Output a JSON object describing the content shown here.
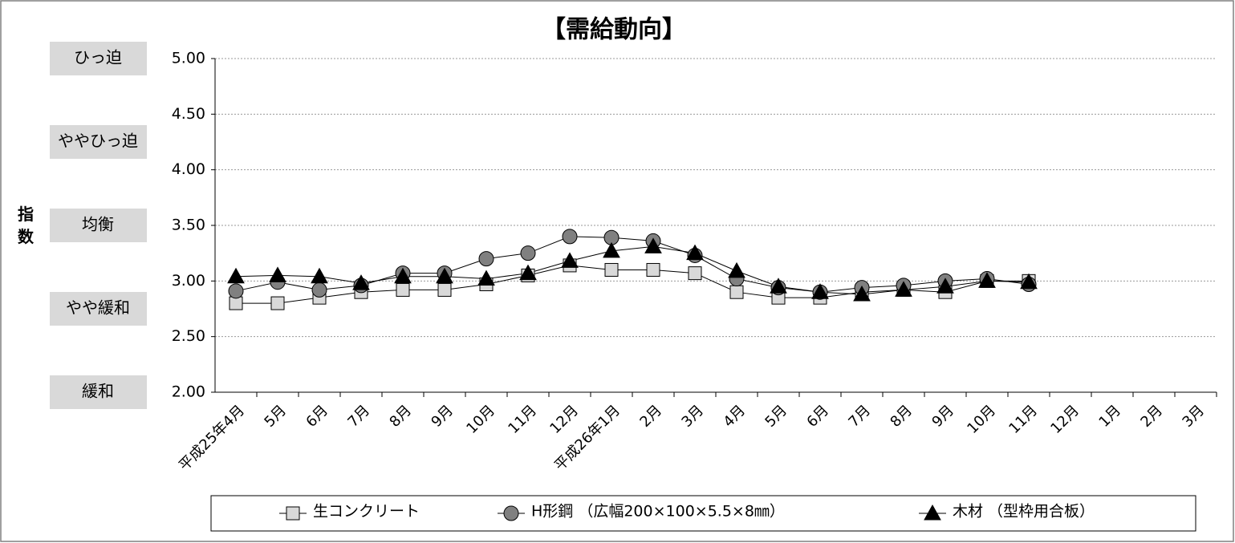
{
  "chart_data": {
    "type": "line",
    "title": "【需給動向】",
    "ylabel": "指数",
    "categories": [
      "平成25年4月",
      "5月",
      "6月",
      "7月",
      "8月",
      "9月",
      "10月",
      "11月",
      "12月",
      "平成26年1月",
      "2月",
      "3月",
      "4月",
      "5月",
      "6月",
      "7月",
      "8月",
      "9月",
      "10月",
      "11月",
      "12月",
      "1月",
      "2月",
      "3月"
    ],
    "series": [
      {
        "name": "生コンクリート",
        "color": "#d9d9d9",
        "marker": "square",
        "values": [
          2.8,
          2.8,
          2.85,
          2.9,
          2.92,
          2.92,
          2.97,
          3.05,
          3.14,
          3.1,
          3.1,
          3.07,
          2.9,
          2.85,
          2.85,
          2.9,
          2.92,
          2.9,
          3.0,
          3.0,
          null,
          null,
          null,
          null
        ]
      },
      {
        "name": "H形鋼 （広幅200×100×5.5×8㎜）",
        "color": "#808080",
        "marker": "circle",
        "values": [
          2.91,
          2.99,
          2.92,
          2.96,
          3.07,
          3.07,
          3.2,
          3.25,
          3.4,
          3.39,
          3.36,
          3.23,
          3.02,
          2.94,
          2.9,
          2.94,
          2.96,
          3.0,
          3.02,
          2.97,
          null,
          null,
          null,
          null
        ]
      },
      {
        "name": "木材 （型枠用合板）",
        "color": "#000000",
        "marker": "triangle",
        "values": [
          3.04,
          3.05,
          3.04,
          2.98,
          3.04,
          3.04,
          3.02,
          3.07,
          3.18,
          3.27,
          3.31,
          3.25,
          3.09,
          2.95,
          2.9,
          2.88,
          2.92,
          2.95,
          3.0,
          2.99,
          null,
          null,
          null,
          null
        ]
      }
    ],
    "ylim": [
      2,
      5
    ],
    "yticks": [
      {
        "value": 2,
        "label": "2.00"
      },
      {
        "value": 2.5,
        "label": "2.50"
      },
      {
        "value": 3,
        "label": "3.00"
      },
      {
        "value": 3.5,
        "label": "3.50"
      },
      {
        "value": 4,
        "label": "4.00"
      },
      {
        "value": 4.5,
        "label": "4.50"
      },
      {
        "value": 5,
        "label": "5.00"
      }
    ],
    "level_labels": [
      {
        "value": 5,
        "label": "ひっ迫"
      },
      {
        "value": 4.25,
        "label": "ややひっ迫"
      },
      {
        "value": 3.5,
        "label": "均衡"
      },
      {
        "value": 2.75,
        "label": "やや緩和"
      },
      {
        "value": 2,
        "label": "緩和"
      }
    ],
    "grid": true,
    "legend": "bottom"
  }
}
